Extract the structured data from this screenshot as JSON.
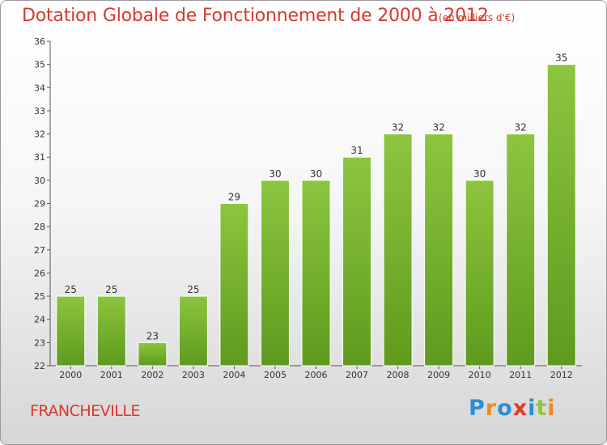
{
  "chart_data": {
    "type": "bar",
    "title": "Dotation Globale de Fonctionnement de 2000 à 2012",
    "subtitle": "(en milliers d'€)",
    "categories": [
      "2000",
      "2001",
      "2002",
      "2003",
      "2004",
      "2005",
      "2006",
      "2007",
      "2008",
      "2009",
      "2010",
      "2011",
      "2012"
    ],
    "values": [
      25,
      25,
      23,
      25,
      29,
      30,
      30,
      31,
      32,
      32,
      30,
      32,
      35
    ],
    "ylim": [
      22,
      36
    ],
    "yticks": [
      22,
      23,
      24,
      25,
      26,
      27,
      28,
      29,
      30,
      31,
      32,
      33,
      34,
      35,
      36
    ],
    "grid": false,
    "bar_color": "#8cc63f",
    "bar_color_dark": "#5f9a1e",
    "data_labels": true
  },
  "footer": {
    "city": "FRANCHEVILLE",
    "logo_letters": [
      "P",
      "r",
      "o",
      "x",
      "i",
      "t",
      "i"
    ],
    "logo_colors": [
      "#2a8fd6",
      "#f08a1c",
      "#2a8fd6",
      "#e03a2e",
      "#2a8fd6",
      "#8cc63f",
      "#f08a1c"
    ]
  }
}
